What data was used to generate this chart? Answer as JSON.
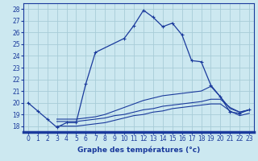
{
  "xlabel": "Graphe des températures (°c)",
  "bg_color": "#cce8f0",
  "grid_color": "#a8ccd8",
  "line_color": "#1a3a9c",
  "ylim": [
    17.5,
    28.5
  ],
  "xlim": [
    -0.5,
    23.5
  ],
  "yticks": [
    18,
    19,
    20,
    21,
    22,
    23,
    24,
    25,
    26,
    27,
    28
  ],
  "xticks": [
    0,
    1,
    2,
    3,
    4,
    5,
    6,
    7,
    8,
    9,
    10,
    11,
    12,
    13,
    14,
    15,
    16,
    17,
    18,
    19,
    20,
    21,
    22,
    23
  ],
  "series": [
    {
      "x": [
        0,
        1,
        2,
        3,
        4,
        5,
        6,
        7,
        10,
        11,
        12,
        13,
        14,
        15,
        16,
        17,
        18,
        19,
        20,
        21,
        22,
        23
      ],
      "y": [
        20.0,
        19.3,
        18.6,
        17.9,
        18.3,
        18.3,
        21.6,
        24.3,
        25.5,
        26.6,
        27.9,
        27.3,
        26.5,
        26.8,
        25.8,
        23.6,
        23.5,
        21.5,
        20.5,
        19.2,
        19.1,
        19.4
      ],
      "marker": "+"
    },
    {
      "x": [
        3,
        4,
        5,
        6,
        7,
        8,
        9,
        10,
        11,
        12,
        13,
        14,
        15,
        16,
        17,
        18,
        19,
        20,
        21,
        22,
        23
      ],
      "y": [
        18.6,
        18.6,
        18.6,
        18.7,
        18.8,
        19.0,
        19.3,
        19.6,
        19.9,
        20.2,
        20.4,
        20.6,
        20.7,
        20.8,
        20.9,
        21.0,
        21.4,
        20.5,
        19.5,
        19.2,
        19.4
      ],
      "marker": null
    },
    {
      "x": [
        3,
        4,
        5,
        6,
        7,
        8,
        9,
        10,
        11,
        12,
        13,
        14,
        15,
        16,
        17,
        18,
        19,
        20,
        21,
        22,
        23
      ],
      "y": [
        18.4,
        18.4,
        18.4,
        18.5,
        18.6,
        18.7,
        18.9,
        19.0,
        19.2,
        19.4,
        19.5,
        19.7,
        19.8,
        19.9,
        20.0,
        20.1,
        20.3,
        20.3,
        19.6,
        19.2,
        19.4
      ],
      "marker": null
    },
    {
      "x": [
        3,
        4,
        5,
        6,
        7,
        8,
        9,
        10,
        11,
        12,
        13,
        14,
        15,
        16,
        17,
        18,
        19,
        20,
        21,
        22,
        23
      ],
      "y": [
        18.0,
        18.0,
        18.0,
        18.1,
        18.2,
        18.3,
        18.5,
        18.7,
        18.9,
        19.0,
        19.2,
        19.3,
        19.5,
        19.6,
        19.7,
        19.8,
        19.9,
        19.9,
        19.3,
        18.9,
        19.1
      ],
      "marker": null
    }
  ]
}
